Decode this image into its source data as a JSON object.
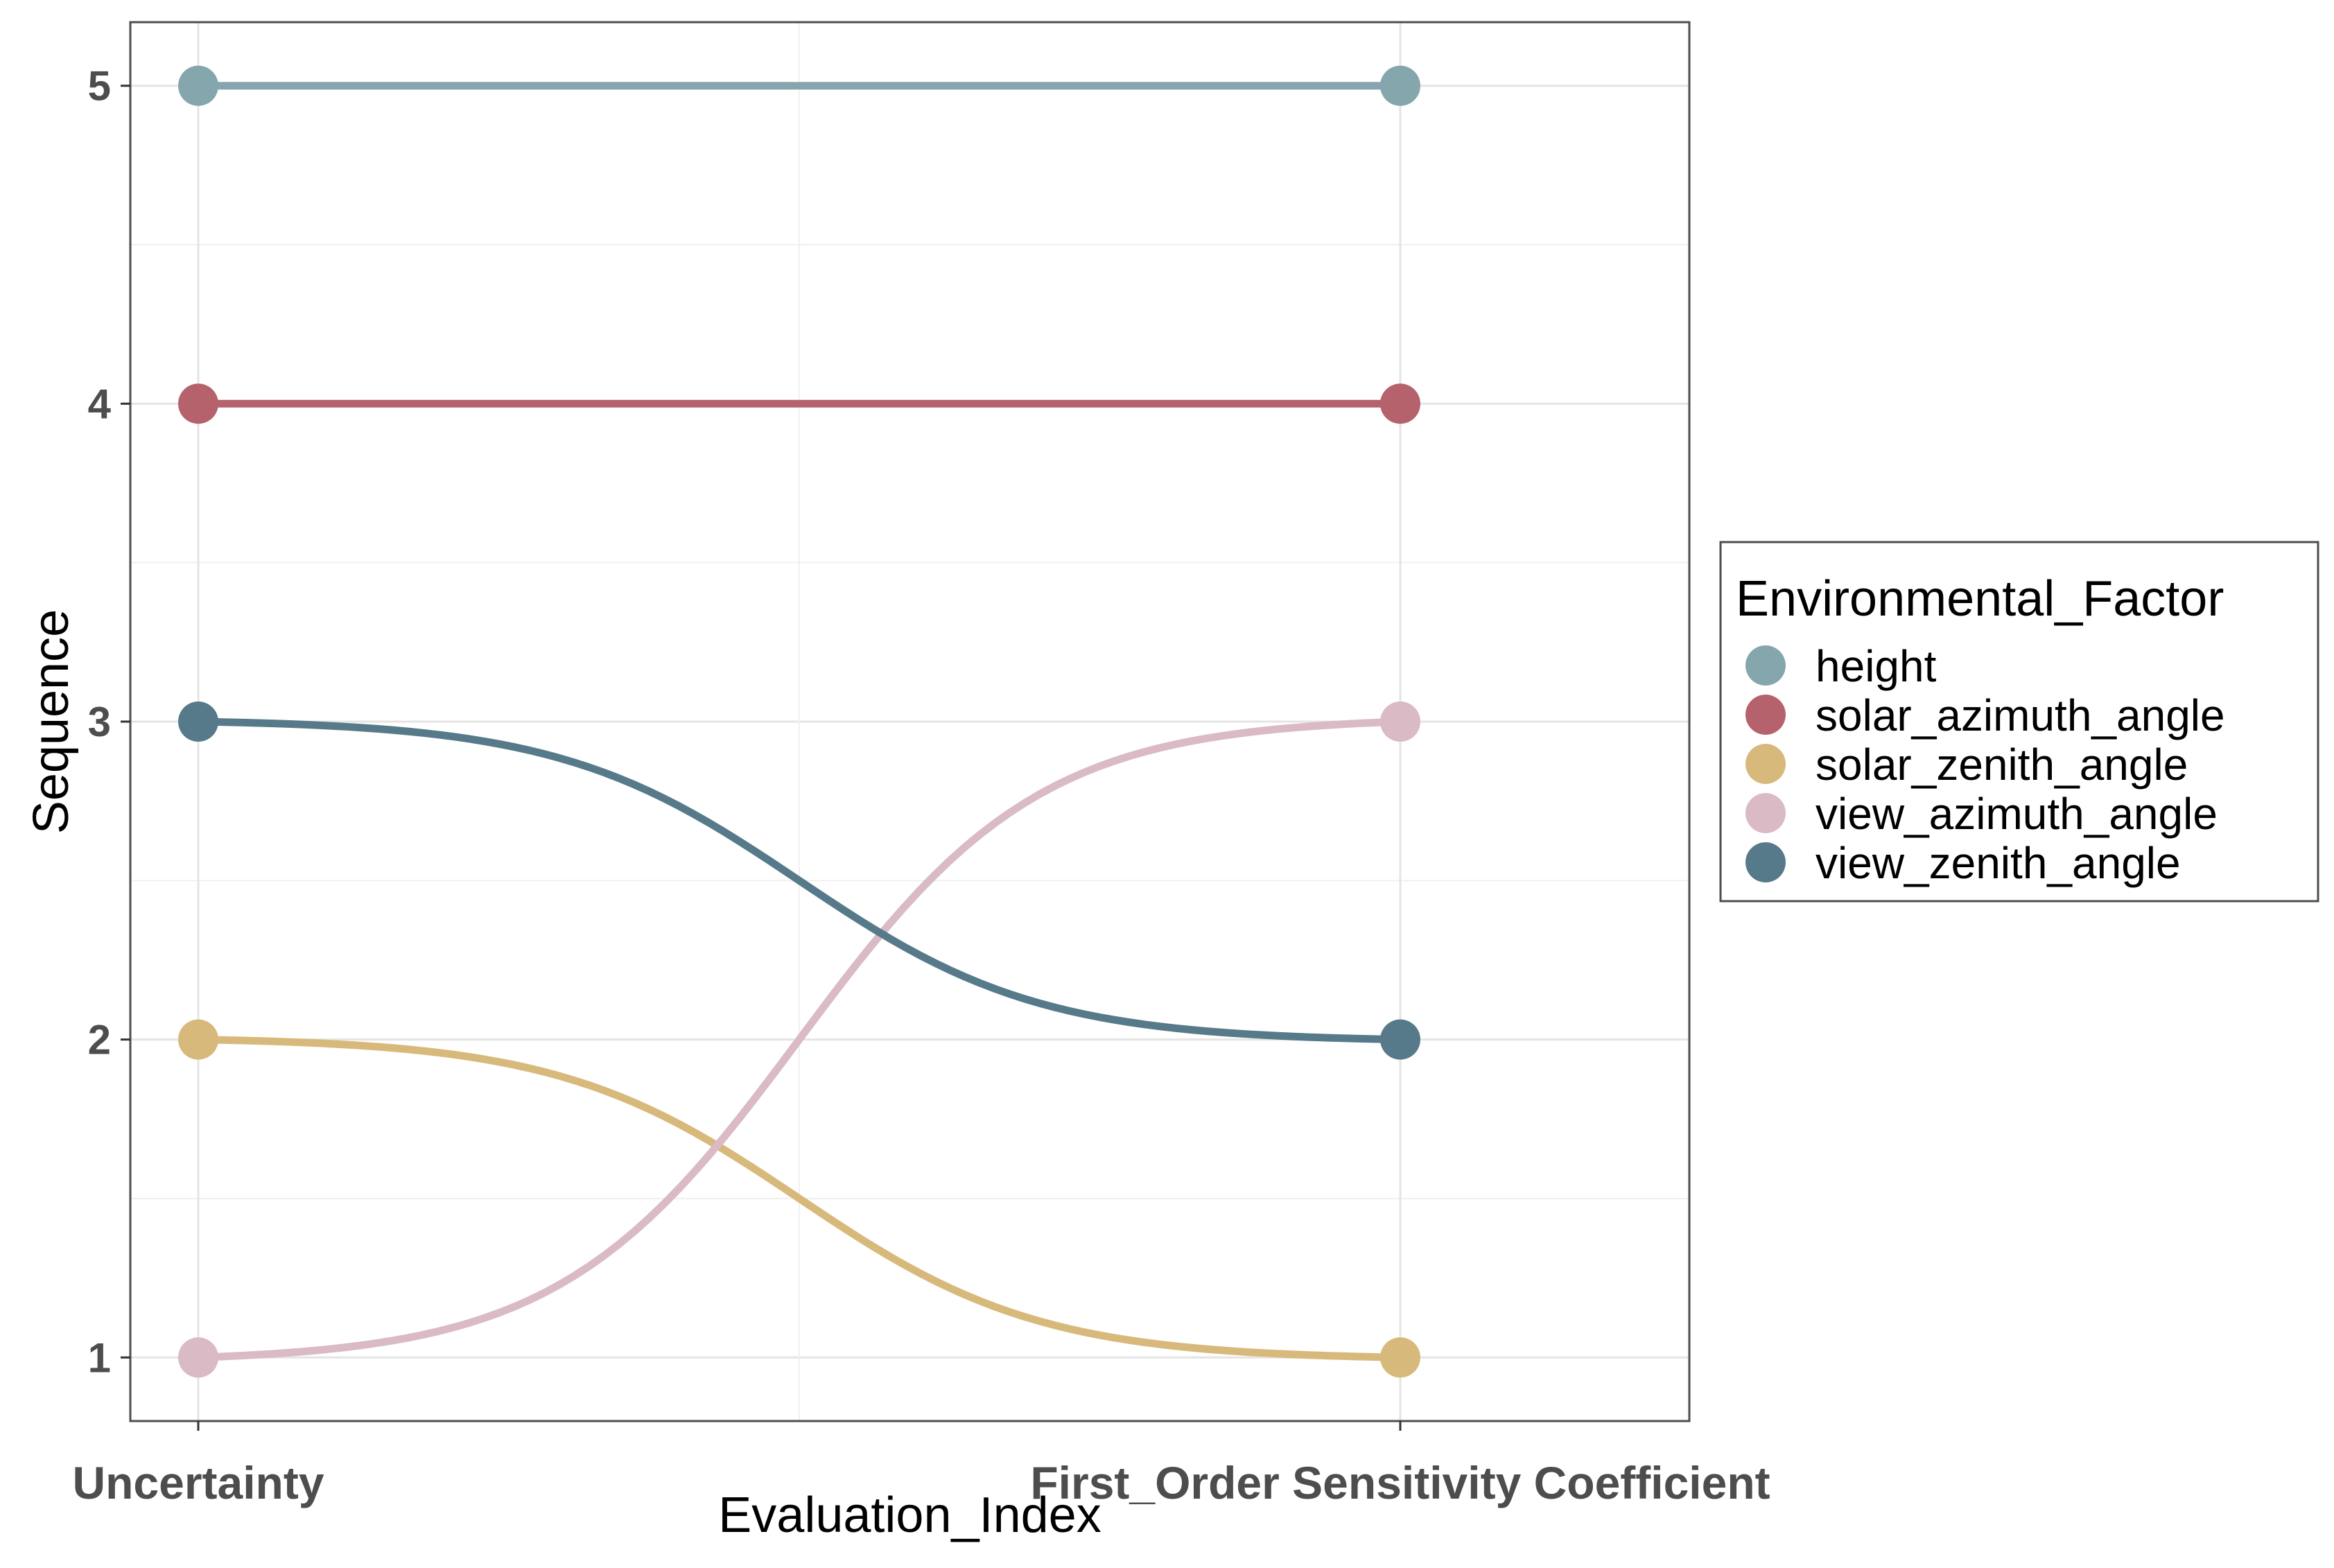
{
  "chart_data": {
    "type": "line",
    "title": "",
    "xlabel": "Evaluation_Index",
    "ylabel": "Sequence",
    "categories": [
      "Uncertainty",
      "First_Order Sensitivity Coefficient"
    ],
    "y_ticks": [
      "1",
      "2",
      "3",
      "4",
      "5"
    ],
    "ylim": [
      0.8,
      5.2
    ],
    "grid": true,
    "legend": {
      "title": "Environmental_Factor",
      "position": "right"
    },
    "series": [
      {
        "name": "height",
        "values": [
          5,
          5
        ],
        "color": "#86a6ad"
      },
      {
        "name": "solar_azimuth_angle",
        "values": [
          4,
          4
        ],
        "color": "#b5626c"
      },
      {
        "name": "solar_zenith_angle",
        "values": [
          2,
          1
        ],
        "color": "#d8b97c"
      },
      {
        "name": "view_azimuth_angle",
        "values": [
          1,
          3
        ],
        "color": "#d9bac5"
      },
      {
        "name": "view_zenith_angle",
        "values": [
          3,
          2
        ],
        "color": "#577a8a"
      }
    ]
  }
}
